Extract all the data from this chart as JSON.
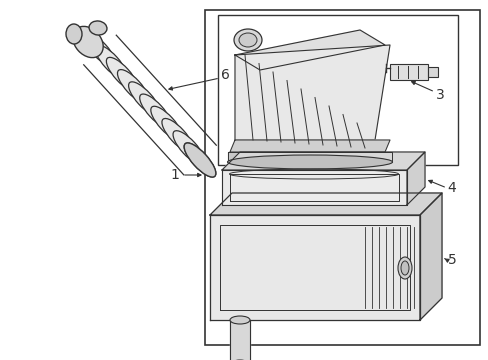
{
  "background_color": "#ffffff",
  "line_color": "#333333",
  "label_color": "#000000",
  "fig_w": 4.89,
  "fig_h": 3.6,
  "dpi": 100
}
